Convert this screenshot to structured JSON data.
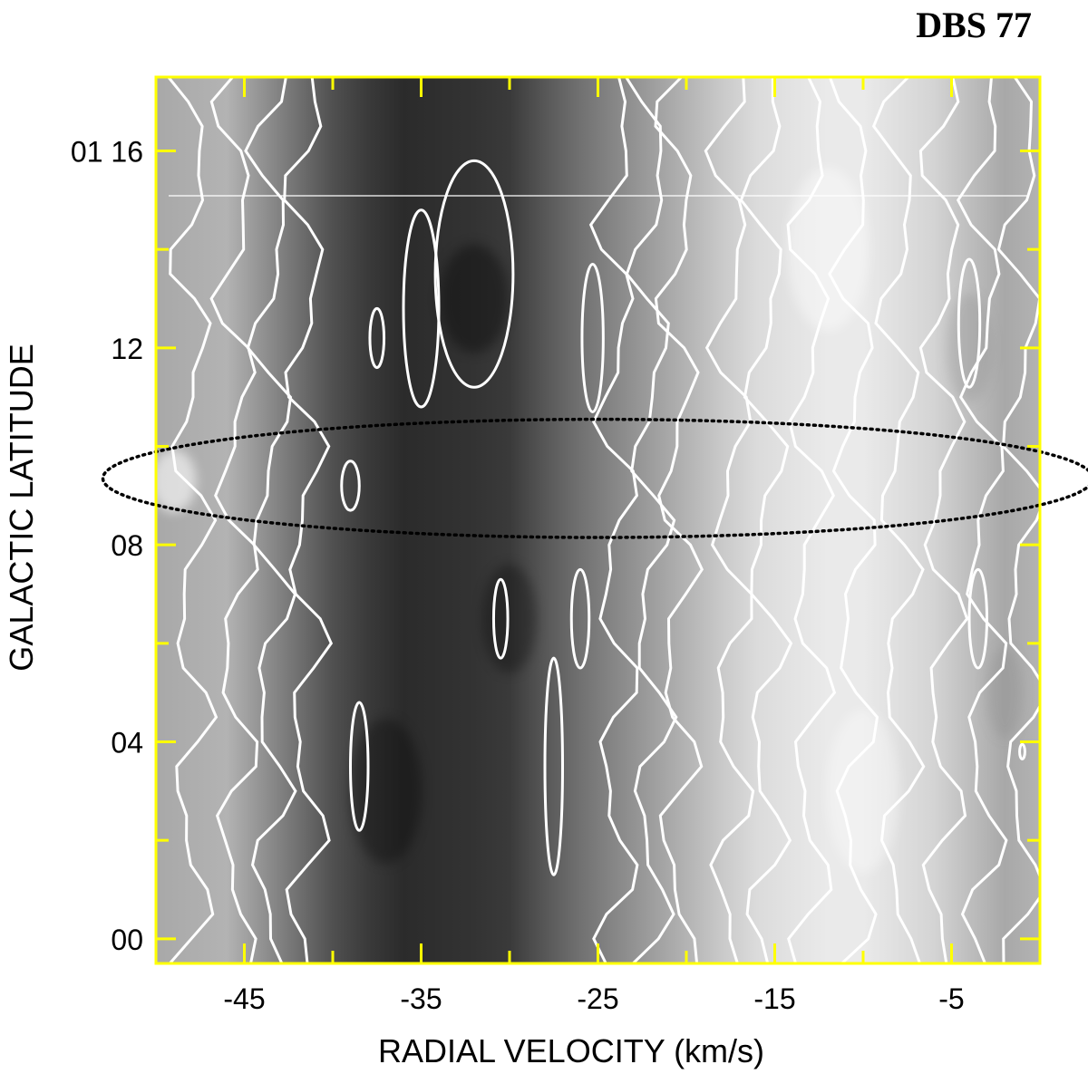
{
  "chart_data": {
    "type": "heatmap",
    "title": "DBS 77",
    "xlabel": "RADIAL VELOCITY (km/s)",
    "ylabel": "GALACTIC LATITUDE",
    "x_ticks": [
      -45,
      -35,
      -25,
      -15,
      -5
    ],
    "x_tick_labels": [
      "-45",
      "-35",
      "-25",
      "-15",
      "-5"
    ],
    "y_ticks": [
      "00",
      "04",
      "08",
      "12",
      "01 16"
    ],
    "y_tick_values": [
      0,
      4,
      8,
      12,
      16
    ],
    "xlim": [
      -50,
      0
    ],
    "ylim": [
      -0.5,
      17.5
    ],
    "colormap": "grayscale (dark = high emission)",
    "contour_color": "#ffffff",
    "frame_color": "#ffff00",
    "ellipse_style": "dotted black",
    "ellipse": {
      "center": [
        -25,
        9.35
      ],
      "half_width_b": 1.2
    },
    "intensity_profile": {
      "velocity": [
        -50,
        -46,
        -44,
        -42,
        -40,
        -38,
        -36,
        -34,
        -32,
        -30,
        -28,
        -26,
        -24,
        -22,
        -20,
        -18,
        -16,
        -14,
        -12,
        -10,
        -8,
        -6,
        -4,
        -2,
        0
      ],
      "relative_intensity": [
        0.35,
        0.3,
        0.45,
        0.6,
        0.75,
        0.85,
        0.92,
        0.9,
        0.88,
        0.85,
        0.72,
        0.6,
        0.5,
        0.4,
        0.3,
        0.2,
        0.12,
        0.08,
        0.05,
        0.05,
        0.1,
        0.15,
        0.25,
        0.35,
        0.3
      ]
    }
  }
}
